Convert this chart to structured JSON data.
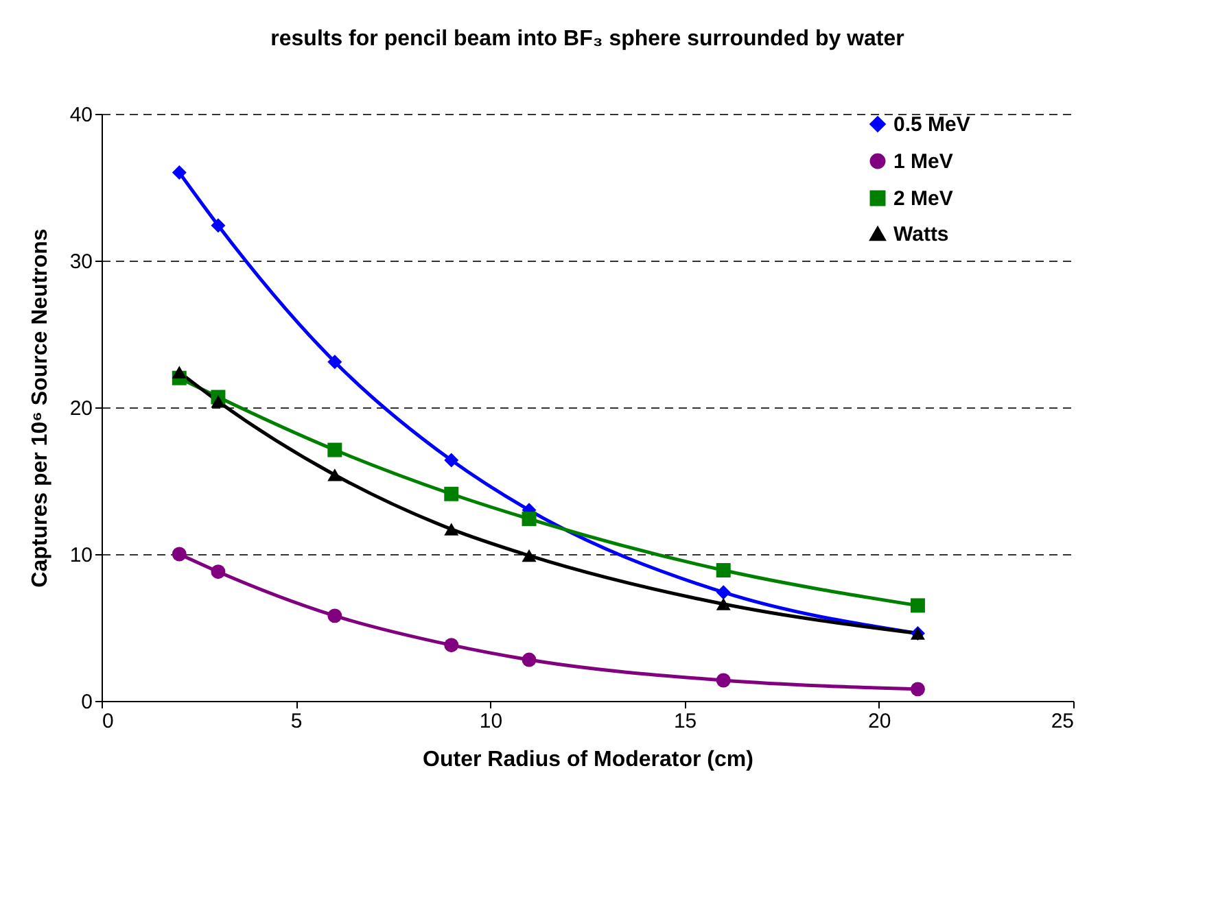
{
  "chart_data": {
    "type": "line",
    "title": "results for pencil beam into BF₃ sphere surrounded by water",
    "xlabel": "Outer Radius of Moderator (cm)",
    "ylabel": "Captures per 10⁶ Source Neutrons",
    "x": [
      2,
      3,
      6,
      9,
      11,
      16,
      21
    ],
    "series": [
      {
        "name": "0.5 MeV",
        "color": "#0000ff",
        "marker": "diamond",
        "values": [
          36,
          32.4,
          23.1,
          16.4,
          13.0,
          7.4,
          4.6
        ]
      },
      {
        "name": "1 MeV",
        "color": "#800080",
        "marker": "circle",
        "values": [
          10.0,
          8.8,
          5.8,
          3.8,
          2.8,
          1.4,
          0.8
        ]
      },
      {
        "name": "2 MeV",
        "color": "#008000",
        "marker": "square",
        "values": [
          22.0,
          20.7,
          17.1,
          14.1,
          12.4,
          8.9,
          6.5
        ]
      },
      {
        "name": "Watts",
        "color": "#000000",
        "marker": "triangle",
        "values": [
          22.4,
          20.4,
          15.4,
          11.7,
          9.9,
          6.6,
          4.6
        ]
      }
    ],
    "xlim": [
      0,
      25
    ],
    "xticks": [
      0,
      5,
      10,
      15,
      20,
      25
    ],
    "ylim": [
      0,
      40
    ],
    "yticks": [
      0,
      10,
      20,
      30,
      40
    ],
    "grid": "y",
    "legend": "right",
    "line_style": "solid"
  }
}
